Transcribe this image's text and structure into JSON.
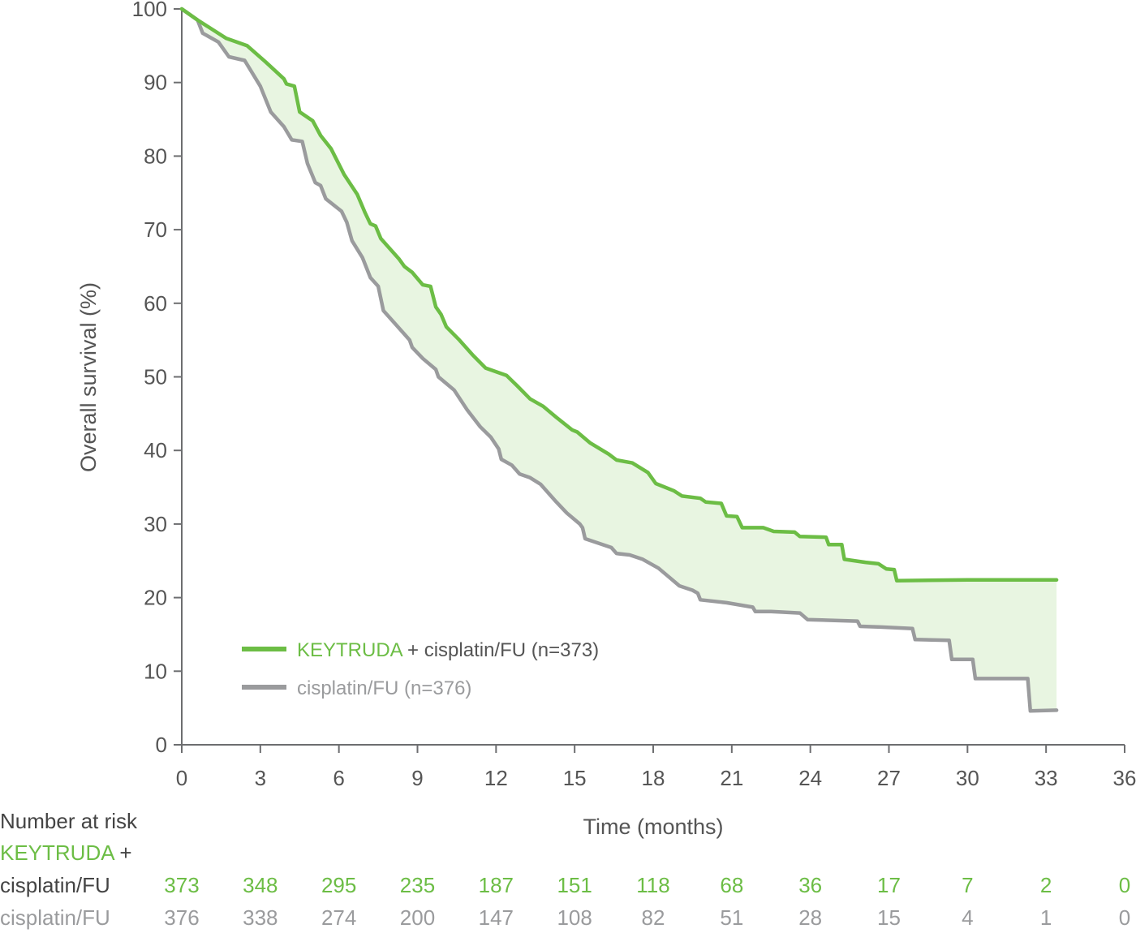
{
  "chart_data": {
    "type": "line",
    "subtype": "kaplan-meier",
    "ylabel": "Overall survival (%)",
    "xlabel": "Time (months)",
    "xlim": [
      0,
      36
    ],
    "ylim": [
      0,
      100
    ],
    "x_ticks": [
      0,
      3,
      6,
      9,
      12,
      15,
      18,
      21,
      24,
      27,
      30,
      33,
      36
    ],
    "y_ticks": [
      0,
      10,
      20,
      30,
      40,
      50,
      60,
      70,
      80,
      90,
      100
    ],
    "grid": false,
    "legend_position": "bottom-left",
    "shaded_region_between_series": true,
    "shade_color": "#e8f5e1",
    "series": [
      {
        "name_colored": "KEYTRUDA",
        "name_rest": " + cisplatin/FU (n=373)",
        "color": "#6cbd45",
        "points": [
          [
            0,
            100
          ],
          [
            0.6,
            98.5
          ],
          [
            1.7,
            96
          ],
          [
            2.5,
            95
          ],
          [
            3.2,
            92.8
          ],
          [
            3.9,
            90.5
          ],
          [
            4.0,
            89.8
          ],
          [
            4.3,
            89.5
          ],
          [
            4.5,
            86
          ],
          [
            5.0,
            84.8
          ],
          [
            5.3,
            82.8
          ],
          [
            5.7,
            81
          ],
          [
            6.2,
            77.5
          ],
          [
            6.7,
            74.8
          ],
          [
            7.0,
            72.3
          ],
          [
            7.2,
            70.8
          ],
          [
            7.4,
            70.5
          ],
          [
            7.6,
            68.8
          ],
          [
            8.0,
            67.2
          ],
          [
            8.3,
            66
          ],
          [
            8.5,
            65
          ],
          [
            8.8,
            64.2
          ],
          [
            9.2,
            62.5
          ],
          [
            9.5,
            62.3
          ],
          [
            9.7,
            59.5
          ],
          [
            9.9,
            58.5
          ],
          [
            10.1,
            56.8
          ],
          [
            10.6,
            55
          ],
          [
            11.1,
            53
          ],
          [
            11.6,
            51.2
          ],
          [
            12.4,
            50.2
          ],
          [
            12.8,
            48.8
          ],
          [
            13.3,
            47
          ],
          [
            13.8,
            46
          ],
          [
            14.3,
            44.5
          ],
          [
            14.9,
            42.8
          ],
          [
            15.1,
            42.5
          ],
          [
            15.6,
            41
          ],
          [
            16.3,
            39.5
          ],
          [
            16.6,
            38.7
          ],
          [
            17.2,
            38.3
          ],
          [
            17.8,
            37
          ],
          [
            18.1,
            35.5
          ],
          [
            18.8,
            34.5
          ],
          [
            19.1,
            33.8
          ],
          [
            19.8,
            33.5
          ],
          [
            20.0,
            33
          ],
          [
            20.6,
            32.8
          ],
          [
            20.8,
            31.1
          ],
          [
            21.2,
            31
          ],
          [
            21.4,
            29.5
          ],
          [
            22.2,
            29.5
          ],
          [
            22.6,
            29
          ],
          [
            23.4,
            28.9
          ],
          [
            23.6,
            28.3
          ],
          [
            24.6,
            28.2
          ],
          [
            24.7,
            27.2
          ],
          [
            25.2,
            27.2
          ],
          [
            25.3,
            25.2
          ],
          [
            26.1,
            24.8
          ],
          [
            26.6,
            24.6
          ],
          [
            26.9,
            23.9
          ],
          [
            27.2,
            23.8
          ],
          [
            27.3,
            22.3
          ],
          [
            30.0,
            22.4
          ],
          [
            33.4,
            22.4
          ]
        ]
      },
      {
        "name": "cisplatin/FU (n=376)",
        "color": "#9a9b9d",
        "points": [
          [
            0,
            100
          ],
          [
            0.6,
            98.5
          ],
          [
            0.8,
            96.7
          ],
          [
            1.4,
            95.5
          ],
          [
            1.8,
            93.5
          ],
          [
            2.4,
            93
          ],
          [
            3.0,
            89.5
          ],
          [
            3.4,
            86
          ],
          [
            3.9,
            84
          ],
          [
            4.2,
            82.2
          ],
          [
            4.6,
            82
          ],
          [
            4.8,
            79
          ],
          [
            5.1,
            76.4
          ],
          [
            5.3,
            76
          ],
          [
            5.5,
            74.2
          ],
          [
            6.1,
            72.5
          ],
          [
            6.3,
            71
          ],
          [
            6.5,
            68.5
          ],
          [
            6.9,
            66.2
          ],
          [
            7.2,
            63.5
          ],
          [
            7.5,
            62.3
          ],
          [
            7.7,
            59
          ],
          [
            8.2,
            57
          ],
          [
            8.7,
            55
          ],
          [
            8.8,
            54
          ],
          [
            9.2,
            52.5
          ],
          [
            9.7,
            51
          ],
          [
            9.8,
            50
          ],
          [
            10.4,
            48.2
          ],
          [
            10.9,
            45.5
          ],
          [
            11.4,
            43.2
          ],
          [
            11.8,
            41.8
          ],
          [
            12.1,
            40.2
          ],
          [
            12.2,
            38.8
          ],
          [
            12.6,
            38
          ],
          [
            12.9,
            36.8
          ],
          [
            13.3,
            36.3
          ],
          [
            13.7,
            35.4
          ],
          [
            14.3,
            33
          ],
          [
            14.7,
            31.5
          ],
          [
            15.2,
            30
          ],
          [
            15.3,
            29.5
          ],
          [
            15.4,
            28
          ],
          [
            16.4,
            26.8
          ],
          [
            16.6,
            26
          ],
          [
            17.1,
            25.8
          ],
          [
            17.6,
            25.2
          ],
          [
            18.2,
            24
          ],
          [
            18.6,
            22.8
          ],
          [
            19.0,
            21.6
          ],
          [
            19.5,
            21
          ],
          [
            19.7,
            20.6
          ],
          [
            19.8,
            19.7
          ],
          [
            20.8,
            19.3
          ],
          [
            21.8,
            18.7
          ],
          [
            21.9,
            18.1
          ],
          [
            22.5,
            18.1
          ],
          [
            23.6,
            17.9
          ],
          [
            23.9,
            17
          ],
          [
            25.8,
            16.8
          ],
          [
            25.9,
            16.1
          ],
          [
            26.7,
            16
          ],
          [
            27.9,
            15.8
          ],
          [
            28.0,
            14.3
          ],
          [
            29.3,
            14.2
          ],
          [
            29.4,
            11.6
          ],
          [
            30.2,
            11.6
          ],
          [
            30.3,
            9
          ],
          [
            32.3,
            9
          ],
          [
            32.4,
            4.6
          ],
          [
            33.4,
            4.7
          ]
        ]
      }
    ],
    "number_at_risk": {
      "title": "Number at risk",
      "rows": [
        {
          "label_colored": "KEYTRUDA",
          "label_plus": " +",
          "label_rest": "cisplatin/FU",
          "label_color": "#6cbd45",
          "label_rest_color": "#444444",
          "color": "#6cbd45",
          "values": [
            373,
            348,
            295,
            235,
            187,
            151,
            118,
            68,
            36,
            17,
            7,
            2,
            0
          ]
        },
        {
          "label": "cisplatin/FU",
          "label_color": "#9a9b9d",
          "color": "#9a9b9d",
          "values": [
            376,
            338,
            274,
            200,
            147,
            108,
            82,
            51,
            28,
            15,
            4,
            1,
            0
          ]
        }
      ]
    }
  }
}
